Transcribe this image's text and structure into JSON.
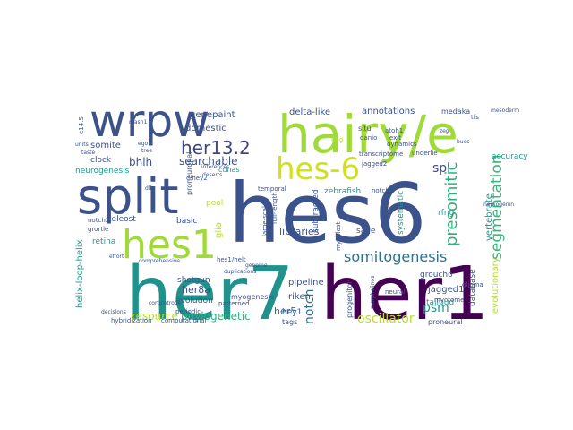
{
  "words": [
    {
      "text": "hes6",
      "color": "#3b528b"
    },
    {
      "text": "her7",
      "color": "#21918c"
    },
    {
      "text": "her1",
      "color": "#440154"
    },
    {
      "text": "hairy/e",
      "color": "#a0da39"
    },
    {
      "text": "split",
      "color": "#3b528b"
    },
    {
      "text": "wrpw",
      "color": "#3b528b"
    },
    {
      "text": "hes1",
      "color": "#a0da39"
    },
    {
      "text": "hes-6",
      "color": "#d0e11c"
    },
    {
      "text": "her13.2",
      "color": "#404688"
    },
    {
      "text": "presomitic",
      "color": "#2db27d"
    },
    {
      "text": "segmentation",
      "color": "#35b779"
    },
    {
      "text": "somitogenesis",
      "color": "#2c728e"
    },
    {
      "text": "spl",
      "color": "#404688"
    },
    {
      "text": "oscillator",
      "color": "#b5de2b"
    },
    {
      "text": "phylogenetic",
      "color": "#2db27d"
    },
    {
      "text": "resource",
      "color": "#b5de2b"
    },
    {
      "text": "notch",
      "color": "#2c728e"
    },
    {
      "text": "psm",
      "color": "#1f9a8a"
    },
    {
      "text": "bhlh",
      "color": "#3b528b"
    },
    {
      "text": "searchable",
      "color": "#3b528b"
    },
    {
      "text": "somite",
      "color": "#3b528b"
    },
    {
      "text": "neurogenesis",
      "color": "#1f9a8a"
    },
    {
      "text": "clock",
      "color": "#3b528b"
    },
    {
      "text": "genepaint",
      "color": "#3b528b"
    },
    {
      "text": "domestic",
      "color": "#3b528b"
    },
    {
      "text": "delta-like",
      "color": "#3b528b"
    },
    {
      "text": "annotations",
      "color": "#3b528b"
    },
    {
      "text": "medaka",
      "color": "#3b528b"
    },
    {
      "text": "helix-loop-helix",
      "color": "#1f9a8a"
    },
    {
      "text": "retina",
      "color": "#1f9a8a"
    },
    {
      "text": "teleost",
      "color": "#3b528b"
    },
    {
      "text": "basic",
      "color": "#3b528b"
    },
    {
      "text": "pool",
      "color": "#b5de2b"
    },
    {
      "text": "glia",
      "color": "#b5de2b"
    },
    {
      "text": "pipeline",
      "color": "#3b528b"
    },
    {
      "text": "riken",
      "color": "#3b528b"
    },
    {
      "text": "her5",
      "color": "#2c728e"
    },
    {
      "text": "her8a",
      "color": "#3b528b"
    },
    {
      "text": "hey1",
      "color": "#3b528b"
    },
    {
      "text": "libraries",
      "color": "#3b528b"
    },
    {
      "text": "zebrafish",
      "color": "#1f9a8a"
    },
    {
      "text": "sage",
      "color": "#3b528b"
    },
    {
      "text": "jagged1",
      "color": "#3b528b"
    },
    {
      "text": "tailbud",
      "color": "#1f9a8a"
    },
    {
      "text": "groucho",
      "color": "#3b528b"
    },
    {
      "text": "vertebrate",
      "color": "#1f9a8a"
    },
    {
      "text": "evolutionary",
      "color": "#b5de2b"
    },
    {
      "text": "accuracy",
      "color": "#1f9a8a"
    },
    {
      "text": "database",
      "color": "#3b528b"
    },
    {
      "text": "systematic",
      "color": "#1f9a8a"
    },
    {
      "text": "rfng",
      "color": "#1f9a8a"
    },
    {
      "text": "subtracted",
      "color": "#3b528b"
    },
    {
      "text": "evolution",
      "color": "#3b528b"
    },
    {
      "text": "shotgun",
      "color": "#3b528b"
    },
    {
      "text": "myogenesis",
      "color": "#3b528b"
    },
    {
      "text": "proneural",
      "color": "#3b528b"
    },
    {
      "text": "progenitor",
      "color": "#3b528b"
    },
    {
      "text": "tags",
      "color": "#3b528b"
    },
    {
      "text": "e14.5",
      "color": "#3b528b"
    },
    {
      "text": "cdnas",
      "color": "#1f9a8a"
    },
    {
      "text": "proneuronal",
      "color": "#3b528b"
    },
    {
      "text": "situ",
      "color": "#3b528b"
    },
    {
      "text": "atoh1",
      "color": "#3b528b"
    },
    {
      "text": "exit",
      "color": "#3b528b"
    },
    {
      "text": "dynamics",
      "color": "#3b528b"
    },
    {
      "text": "danio",
      "color": "#3b528b"
    },
    {
      "text": "transcriptome",
      "color": "#3b528b"
    },
    {
      "text": "jagged2",
      "color": "#3b528b"
    },
    {
      "text": "notch1",
      "color": "#3b528b"
    },
    {
      "text": "underlie",
      "color": "#3b528b"
    },
    {
      "text": "lfng",
      "color": "#b5de2b"
    },
    {
      "text": "large-scale",
      "color": "#3b528b"
    },
    {
      "text": "full-length",
      "color": "#3b528b"
    },
    {
      "text": "myoblast",
      "color": "#3b528b"
    },
    {
      "text": "temporal",
      "color": "#3b528b"
    },
    {
      "text": "notch2",
      "color": "#3b528b"
    },
    {
      "text": "grortle",
      "color": "#3b528b"
    },
    {
      "text": "hes1/helt",
      "color": "#3b528b"
    },
    {
      "text": "patterned",
      "color": "#3b528b"
    },
    {
      "text": "periodic",
      "color": "#3b528b"
    },
    {
      "text": "hybridization",
      "color": "#3b528b"
    },
    {
      "text": "computational",
      "color": "#3b528b"
    },
    {
      "text": "myotome",
      "color": "#3b528b"
    },
    {
      "text": "neural",
      "color": "#3b528b"
    },
    {
      "text": "comprehensive",
      "color": "#3b528b"
    },
    {
      "text": "c-hey2",
      "color": "#3b528b"
    },
    {
      "text": "duplications",
      "color": "#3b528b"
    },
    {
      "text": "inferences",
      "color": "#3b528b"
    },
    {
      "text": "deserts",
      "color": "#3b528b"
    },
    {
      "text": "glioma",
      "color": "#3b528b"
    },
    {
      "text": "mash1",
      "color": "#3b528b"
    },
    {
      "text": "taste",
      "color": "#3b528b"
    },
    {
      "text": "units",
      "color": "#3b528b"
    },
    {
      "text": "ego",
      "color": "#3b528b"
    },
    {
      "text": "effort",
      "color": "#3b528b"
    },
    {
      "text": "dll",
      "color": "#3b528b"
    },
    {
      "text": "tree",
      "color": "#3b528b"
    },
    {
      "text": "decisions",
      "color": "#3b528b"
    },
    {
      "text": "corticotrope",
      "color": "#3b528b"
    },
    {
      "text": "genome",
      "color": "#3b528b"
    },
    {
      "text": "morpholinos",
      "color": "#3b528b"
    },
    {
      "text": "neurogenin",
      "color": "#3b528b"
    },
    {
      "text": "mesoderm",
      "color": "#3b528b"
    },
    {
      "text": "tfs",
      "color": "#3b528b"
    },
    {
      "text": "zeg",
      "color": "#3b528b"
    },
    {
      "text": "buds",
      "color": "#3b528b"
    }
  ]
}
